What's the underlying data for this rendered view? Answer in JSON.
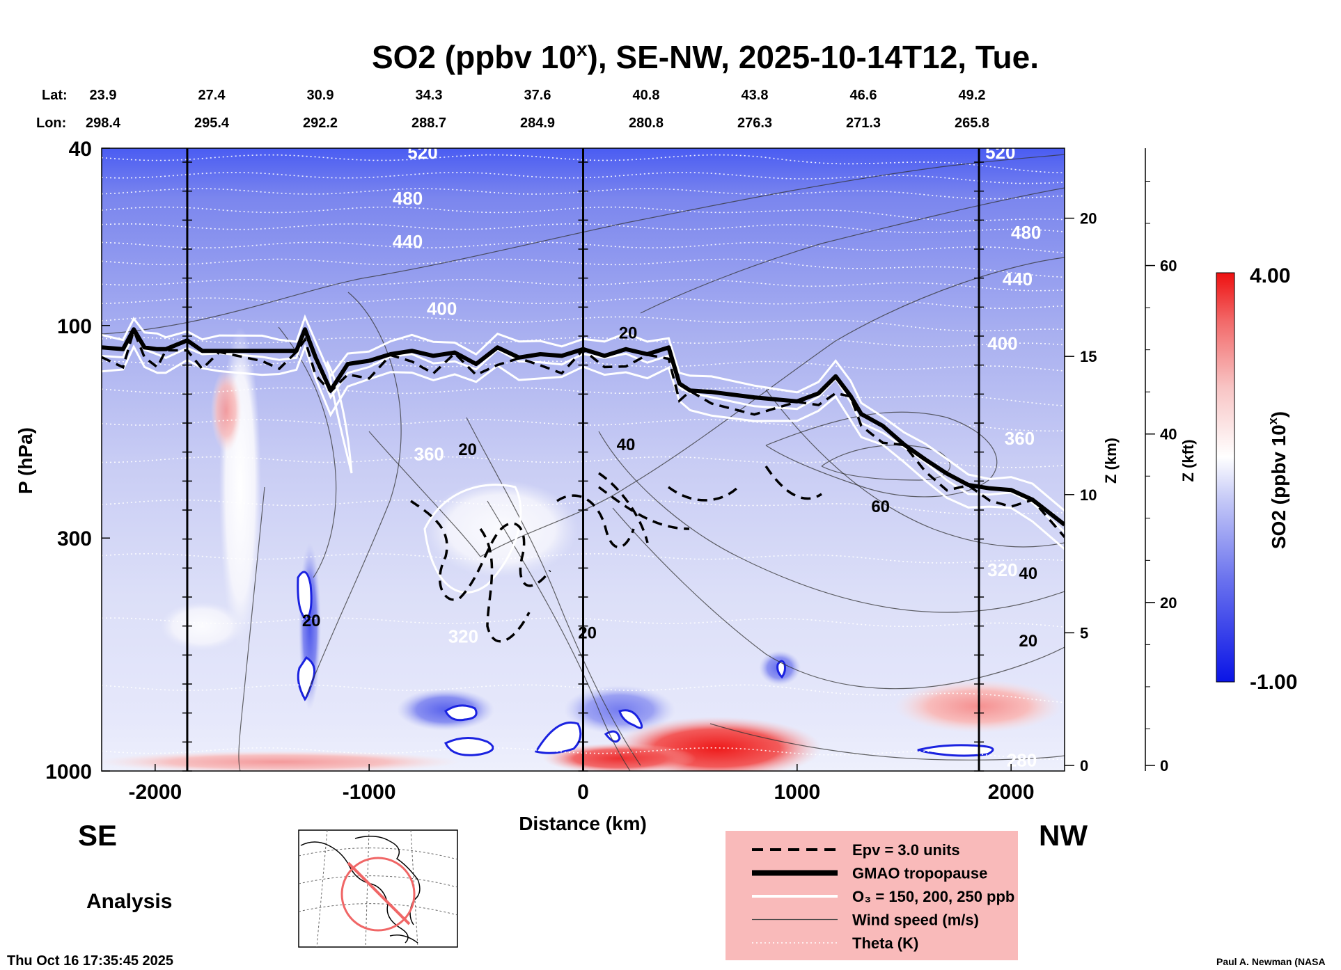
{
  "chart_data": {
    "type": "heatmap",
    "title_main": "SO2 (ppbv 10",
    "title_sup": "x",
    "title_rest": "), SE-NW, 2025-10-14T12, Tue.",
    "xlabel": "Distance (km)",
    "ylabel": "P (hPa)",
    "xlim": [
      -2250,
      2250
    ],
    "ylim": [
      1000,
      40
    ],
    "x_ticks": [
      -2000,
      -1000,
      0,
      1000,
      2000
    ],
    "x_tick_labels": [
      "-2000",
      "-1000",
      "0",
      "1000",
      "2000"
    ],
    "y_ticks": [
      40,
      100,
      300,
      1000
    ],
    "y_tick_labels": [
      "40",
      "100",
      "300",
      "1000"
    ],
    "z_km_label": "Z (km)",
    "z_km_ticks": [
      0,
      5,
      10,
      15,
      20
    ],
    "z_km_tick_labels": [
      "0",
      "5",
      "10",
      "15",
      "20"
    ],
    "z_kft_label": "Z (kft)",
    "z_kft_ticks": [
      0,
      20,
      40,
      60
    ],
    "z_kft_tick_labels": [
      "0",
      "20",
      "40",
      "60"
    ],
    "lat_label": "Lat:",
    "lon_label": "Lon:",
    "lat_values": [
      "23.9",
      "27.4",
      "30.9",
      "34.3",
      "37.6",
      "40.8",
      "43.8",
      "46.6",
      "49.2"
    ],
    "lon_values": [
      "298.4",
      "295.4",
      "292.2",
      "288.7",
      "284.9",
      "280.8",
      "276.3",
      "271.3",
      "265.8"
    ],
    "vertical_markers_km": [
      -1850,
      0,
      1850
    ],
    "colorbar": {
      "label_main": "SO2 (ppbv 10",
      "label_sup": "x",
      "label_rest": ")",
      "max_label": "4.00",
      "min_label": "-1.00",
      "low_color": "#0a14e6",
      "mid_color": "#ffffff",
      "high_color": "#ee1010"
    },
    "theta_labels": [
      {
        "text": "520",
        "x": -750,
        "p": 41
      },
      {
        "text": "480",
        "x": -820,
        "p": 52
      },
      {
        "text": "440",
        "x": -820,
        "p": 65
      },
      {
        "text": "400",
        "x": -660,
        "p": 92
      },
      {
        "text": "360",
        "x": -720,
        "p": 195
      },
      {
        "text": "320",
        "x": -560,
        "p": 500
      },
      {
        "text": "520",
        "x": 1950,
        "p": 41
      },
      {
        "text": "480",
        "x": 2070,
        "p": 62
      },
      {
        "text": "440",
        "x": 2030,
        "p": 79
      },
      {
        "text": "400",
        "x": 1960,
        "p": 110
      },
      {
        "text": "360",
        "x": 2040,
        "p": 180
      },
      {
        "text": "320",
        "x": 1960,
        "p": 355
      },
      {
        "text": "280",
        "x": 2050,
        "p": 950
      }
    ],
    "wind_labels": [
      {
        "text": "20",
        "x": 210,
        "p": 104
      },
      {
        "text": "20",
        "x": -540,
        "p": 190
      },
      {
        "text": "40",
        "x": 200,
        "p": 185
      },
      {
        "text": "60",
        "x": 1390,
        "p": 255
      },
      {
        "text": "20",
        "x": -1270,
        "p": 460
      },
      {
        "text": "20",
        "x": 20,
        "p": 490
      },
      {
        "text": "20",
        "x": 2080,
        "p": 510
      },
      {
        "text": "40",
        "x": 2080,
        "p": 360
      }
    ],
    "legend": [
      {
        "label": "Epv = 3.0 units",
        "style": "dashed"
      },
      {
        "label": "GMAO tropopause",
        "style": "thick"
      },
      {
        "label": "O₃ = 150, 200, 250 ppb",
        "style": "white"
      },
      {
        "label": "Wind speed (m/s)",
        "style": "thin"
      },
      {
        "label": "Theta (K)",
        "style": "dotted"
      }
    ],
    "legend_bg": "#f9baba",
    "tropopause_x": [
      -2250,
      -2150,
      -2100,
      -2050,
      -1990,
      -1950,
      -1850,
      -1780,
      -1700,
      -1500,
      -1420,
      -1340,
      -1300,
      -1250,
      -1180,
      -1100,
      -1000,
      -900,
      -800,
      -700,
      -600,
      -500,
      -400,
      -300,
      -200,
      -100,
      0,
      100,
      200,
      300,
      400,
      450,
      500,
      600,
      800,
      1000,
      1100,
      1180,
      1250,
      1300,
      1400,
      1500,
      1600,
      1700,
      1800,
      1900,
      2000,
      2100,
      2250
    ],
    "tropopause_p": [
      112,
      113,
      102,
      112,
      113,
      113,
      108,
      114,
      114,
      114,
      114,
      114,
      102,
      118,
      140,
      122,
      120,
      116,
      114,
      117,
      115,
      122,
      112,
      118,
      116,
      117,
      113,
      117,
      113,
      116,
      112,
      135,
      140,
      141,
      145,
      148,
      142,
      130,
      144,
      158,
      168,
      185,
      200,
      215,
      228,
      232,
      234,
      246,
      280
    ],
    "so2_scale_unit": "ppbv 10^x",
    "region_labels": {
      "left": "SE",
      "right": "NW",
      "analysis": "Analysis"
    },
    "timestamp": "Thu Oct 16 17:35:45 2025",
    "credit": "Paul A. Newman (NASA"
  }
}
